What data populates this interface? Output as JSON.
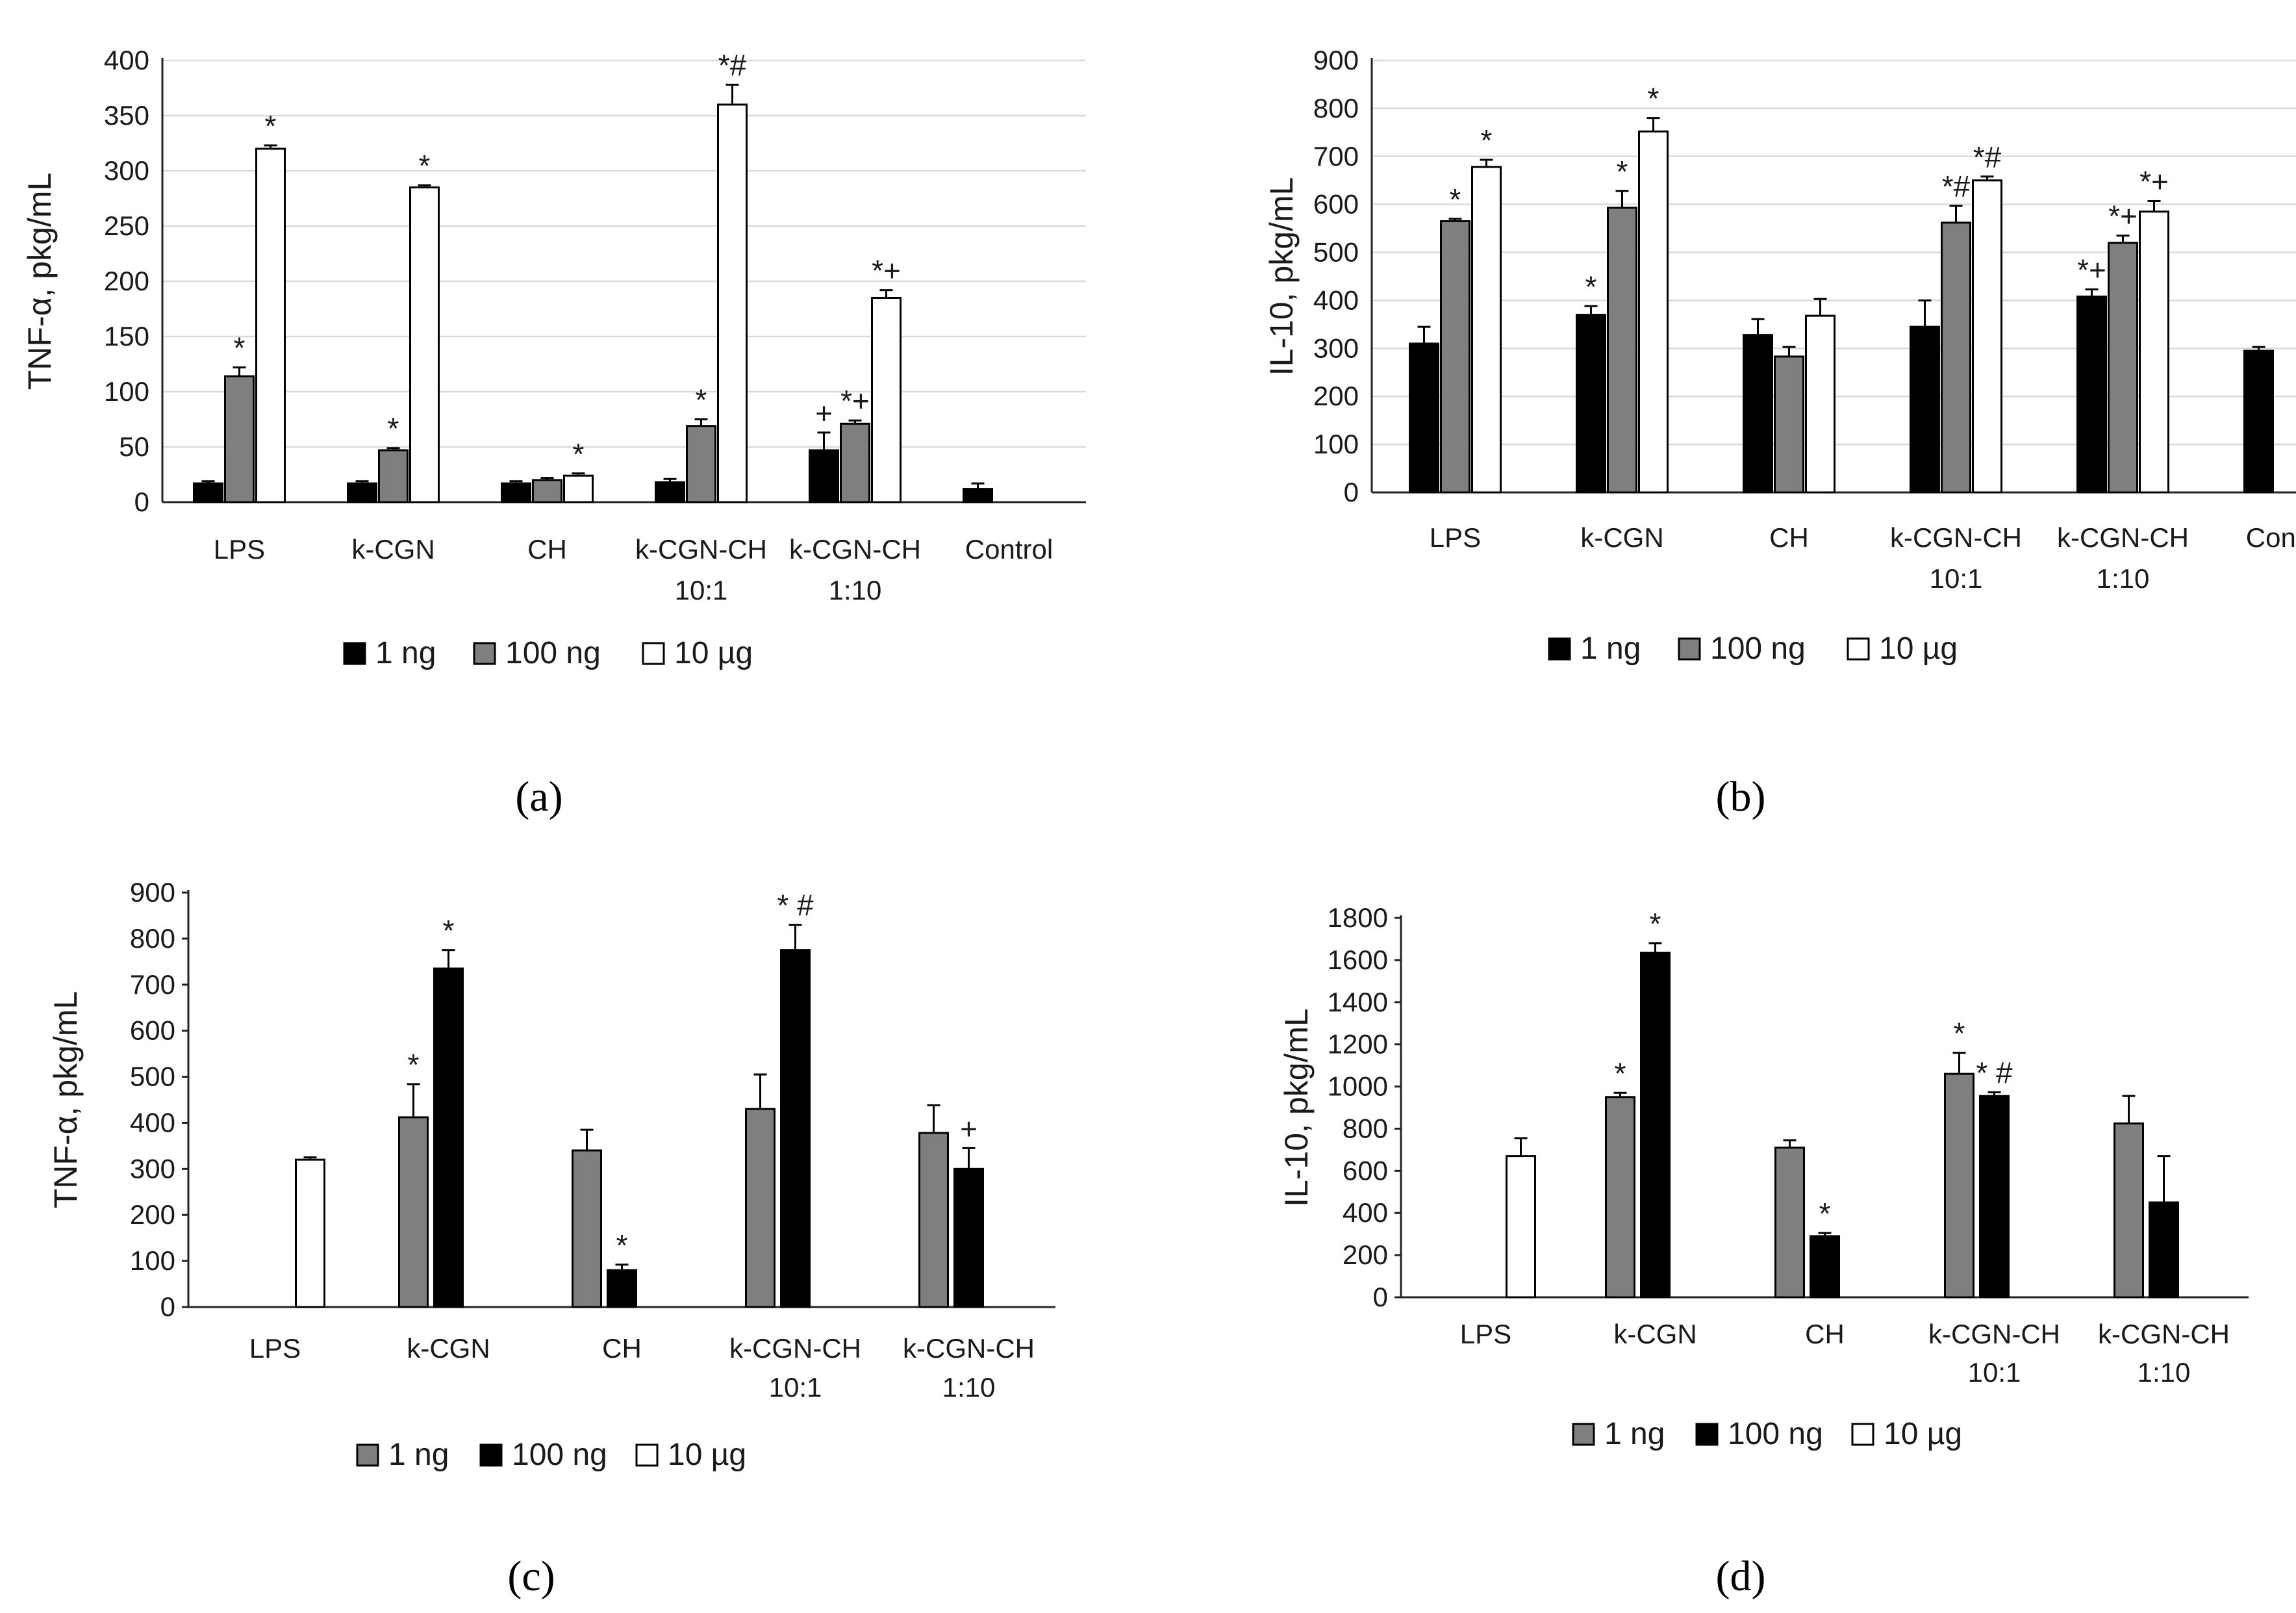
{
  "legend_colors": {
    "black": "#000000",
    "gray": "#7f7f7f",
    "white": "#ffffff"
  },
  "chart_data": [
    {
      "panel_label": "(a)",
      "type": "bar",
      "ylabel": "TNF-α, pkg/mL",
      "ylim": [
        0,
        400
      ],
      "yticks": [
        0,
        50,
        100,
        150,
        200,
        250,
        300,
        350,
        400
      ],
      "grid": true,
      "categories": [
        "LPS",
        "k-CGN",
        "CH",
        "k-CGN-CH\n10:1",
        "k-CGN-CH\n1:10",
        "Control"
      ],
      "legend": [
        {
          "label": "1 ng",
          "color": "#000000"
        },
        {
          "label": "100 ng",
          "color": "#7f7f7f"
        },
        {
          "label": "10 µg",
          "color": "#ffffff"
        }
      ],
      "series": [
        {
          "name": "1 ng",
          "color": "#000000",
          "values": [
            17,
            17,
            17,
            18,
            47,
            12
          ],
          "errors": [
            2,
            2,
            2,
            3,
            16,
            5
          ],
          "annotations": [
            "",
            "",
            "",
            "",
            "+",
            ""
          ]
        },
        {
          "name": "100 ng",
          "color": "#7f7f7f",
          "values": [
            114,
            47,
            20,
            69,
            71,
            null
          ],
          "errors": [
            8,
            2,
            2,
            6,
            3,
            null
          ],
          "annotations": [
            "*",
            "*",
            "",
            "*",
            "*+",
            ""
          ]
        },
        {
          "name": "10 µg",
          "color": "#ffffff",
          "values": [
            320,
            285,
            24,
            360,
            185,
            null
          ],
          "errors": [
            3,
            2,
            2,
            18,
            7,
            null
          ],
          "annotations": [
            "*",
            "*",
            "*",
            "*#",
            "*+",
            ""
          ]
        }
      ]
    },
    {
      "panel_label": "(b)",
      "type": "bar",
      "ylabel": "IL-10, pkg/mL",
      "ylim": [
        0,
        900
      ],
      "yticks": [
        0,
        100,
        200,
        300,
        400,
        500,
        600,
        700,
        800,
        900
      ],
      "grid": true,
      "categories": [
        "LPS",
        "k-CGN",
        "CH",
        "k-CGN-CH\n10:1",
        "k-CGN-CH\n1:10",
        "Control"
      ],
      "legend": [
        {
          "label": "1 ng",
          "color": "#000000"
        },
        {
          "label": "100 ng",
          "color": "#7f7f7f"
        },
        {
          "label": "10 µg",
          "color": "#ffffff"
        }
      ],
      "series": [
        {
          "name": "1 ng",
          "color": "#000000",
          "values": [
            310,
            370,
            328,
            345,
            408,
            295
          ],
          "errors": [
            35,
            18,
            33,
            55,
            15,
            8
          ],
          "annotations": [
            "",
            "*",
            "",
            "",
            "*+",
            ""
          ]
        },
        {
          "name": "100 ng",
          "color": "#7f7f7f",
          "values": [
            565,
            593,
            283,
            562,
            520,
            null
          ],
          "errors": [
            5,
            35,
            20,
            35,
            15,
            null
          ],
          "annotations": [
            "*",
            "*",
            "",
            "*#",
            "*+",
            ""
          ]
        },
        {
          "name": "10 µg",
          "color": "#ffffff",
          "values": [
            678,
            752,
            368,
            650,
            585,
            null
          ],
          "errors": [
            15,
            28,
            35,
            8,
            22,
            null
          ],
          "annotations": [
            "*",
            "*",
            "",
            "*#",
            "*+",
            ""
          ]
        }
      ]
    },
    {
      "panel_label": "(c)",
      "type": "bar",
      "ylabel": "TNF-α, pkg/mL",
      "ylim": [
        0,
        900
      ],
      "yticks": [
        0,
        100,
        200,
        300,
        400,
        500,
        600,
        700,
        800,
        900
      ],
      "grid": false,
      "categories": [
        "LPS",
        "k-CGN",
        "CH",
        "k-CGN-CH\n10:1",
        "k-CGN-CH\n1:10"
      ],
      "legend": [
        {
          "label": "1 ng",
          "color": "#7f7f7f"
        },
        {
          "label": "100 ng",
          "color": "#000000"
        },
        {
          "label": "10 µg",
          "color": "#ffffff"
        }
      ],
      "series": [
        {
          "name": "1 ng",
          "color": "#7f7f7f",
          "values": [
            null,
            412,
            340,
            430,
            378
          ],
          "errors": [
            null,
            72,
            45,
            75,
            60
          ],
          "annotations": [
            "",
            "*",
            "",
            "",
            ""
          ]
        },
        {
          "name": "100 ng",
          "color": "#000000",
          "values": [
            null,
            735,
            80,
            775,
            300
          ],
          "errors": [
            null,
            40,
            12,
            55,
            45
          ],
          "annotations": [
            "",
            "*",
            "*",
            "* #",
            "+"
          ]
        },
        {
          "name": "10 µg",
          "color": "#ffffff",
          "values": [
            320,
            null,
            null,
            null,
            null
          ],
          "errors": [
            5,
            null,
            null,
            null,
            null
          ],
          "annotations": [
            "",
            "",
            "",
            "",
            ""
          ]
        }
      ]
    },
    {
      "panel_label": "(d)",
      "type": "bar",
      "ylabel": "IL-10, pkg/mL",
      "ylim": [
        0,
        1800
      ],
      "yticks": [
        0,
        200,
        400,
        600,
        800,
        1000,
        1200,
        1400,
        1600,
        1800
      ],
      "grid": false,
      "categories": [
        "LPS",
        "k-CGN",
        "CH",
        "k-CGN-CH\n10:1",
        "k-CGN-CH\n1:10"
      ],
      "legend": [
        {
          "label": "1 ng",
          "color": "#7f7f7f"
        },
        {
          "label": "100 ng",
          "color": "#000000"
        },
        {
          "label": "10 µg",
          "color": "#ffffff"
        }
      ],
      "series": [
        {
          "name": "1 ng",
          "color": "#7f7f7f",
          "values": [
            null,
            950,
            710,
            1060,
            825
          ],
          "errors": [
            null,
            20,
            35,
            100,
            130
          ],
          "annotations": [
            "",
            "*",
            "",
            "*",
            ""
          ]
        },
        {
          "name": "100 ng",
          "color": "#000000",
          "values": [
            null,
            1635,
            290,
            955,
            450
          ],
          "errors": [
            null,
            45,
            15,
            18,
            220
          ],
          "annotations": [
            "",
            "*",
            "*",
            "* #",
            ""
          ]
        },
        {
          "name": "10 µg",
          "color": "#ffffff",
          "values": [
            670,
            null,
            null,
            null,
            null
          ],
          "errors": [
            85,
            null,
            null,
            null,
            null
          ],
          "annotations": [
            "",
            "",
            "",
            "",
            ""
          ]
        }
      ]
    }
  ]
}
